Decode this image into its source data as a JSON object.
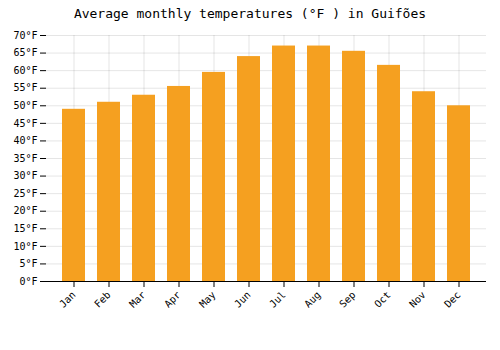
{
  "chart_data": {
    "type": "bar",
    "title": "Average monthly temperatures (°F ) in Guifões",
    "categories": [
      "Jan",
      "Feb",
      "Mar",
      "Apr",
      "May",
      "Jun",
      "Jul",
      "Aug",
      "Sep",
      "Oct",
      "Nov",
      "Dec"
    ],
    "values": [
      49,
      51,
      53,
      55.5,
      59.5,
      64,
      67,
      67,
      65.5,
      61.5,
      54,
      50
    ],
    "color": "#F5A020",
    "ylim": [
      0,
      70
    ],
    "yticks": [
      {
        "value": 0,
        "label": "0°F"
      },
      {
        "value": 5,
        "label": "5°F"
      },
      {
        "value": 10,
        "label": "10°F"
      },
      {
        "value": 15,
        "label": "15°F"
      },
      {
        "value": 20,
        "label": "20°F"
      },
      {
        "value": 25,
        "label": "25°F"
      },
      {
        "value": 30,
        "label": "30°F"
      },
      {
        "value": 35,
        "label": "35°F"
      },
      {
        "value": 40,
        "label": "40°F"
      },
      {
        "value": 45,
        "label": "45°F"
      },
      {
        "value": 50,
        "label": "50°F"
      },
      {
        "value": 55,
        "label": "55°F"
      },
      {
        "value": 60,
        "label": "60°F"
      },
      {
        "value": 65,
        "label": "65°F"
      },
      {
        "value": 70,
        "label": "70°F"
      }
    ],
    "grid": true
  }
}
